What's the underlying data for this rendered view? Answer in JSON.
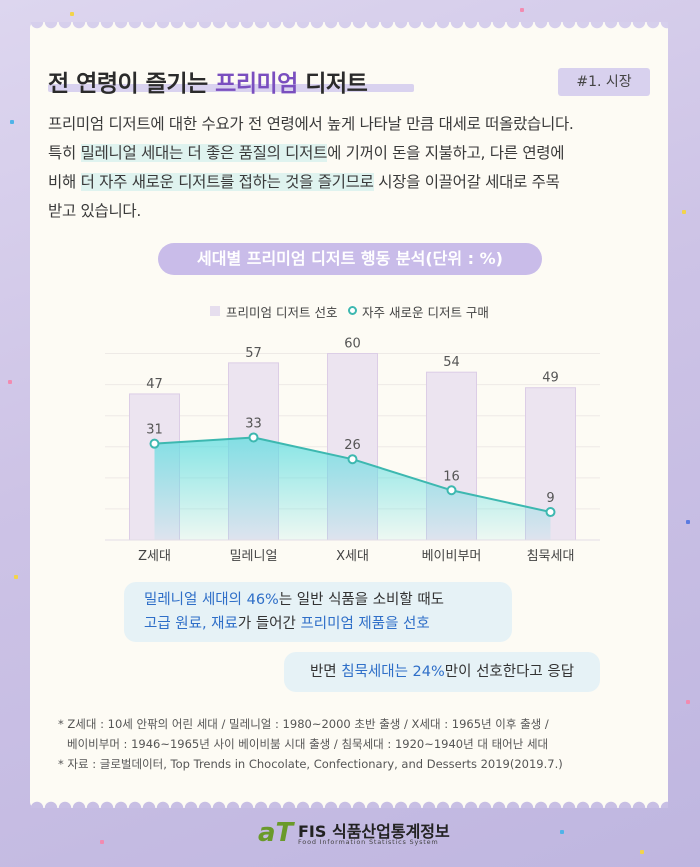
{
  "header": {
    "title_pre": "전 연령이 즐기는 ",
    "title_highlight": "프리미엄",
    "title_post": " 디저트",
    "tag": "#1. 시장"
  },
  "intro": {
    "p1": "프리미엄 디저트에 대한 수요가 전 연령에서 높게 나타날 만큼 대세로 떠올랐습니다.",
    "p2_pre": "특히 ",
    "p2_mark1": "밀레니얼 세대는 더 좋은 품질의 디저트",
    "p2_mid": "에 기꺼이 돈을 지불하고, 다른 연령에",
    "p3_pre": "비해 ",
    "p3_mark2": "더 자주 새로운 디저트를 접하는 것을 즐기므로",
    "p3_post": " 시장을 이끌어갈 세대로 주목",
    "p4": "받고 있습니다."
  },
  "chart_data": {
    "type": "bar",
    "title": "세대별 프리미엄 디저트 행동 분석(단위 : %)",
    "categories": [
      "Z세대",
      "밀레니얼",
      "X세대",
      "베이비부머",
      "침묵세대"
    ],
    "series": [
      {
        "name": "프리미엄 디저트 선호",
        "type": "bar",
        "values": [
          47,
          57,
          60,
          54,
          49
        ]
      },
      {
        "name": "자주 새로운 디저트 구매",
        "type": "line",
        "values": [
          31,
          33,
          26,
          16,
          9
        ]
      }
    ],
    "ylim": [
      0,
      65
    ],
    "grid": true,
    "legend": "top",
    "colors": {
      "bar": "#ece4f0",
      "bar_stroke": "#dccde6",
      "line": "#3db8b0",
      "area": "#5fdde0"
    }
  },
  "callouts": {
    "c1_l1_a": "밀레니얼 세대의 46%",
    "c1_l1_b": "는 일반 식품을 소비할 때도",
    "c1_l2_a": "고급 원료, 재료",
    "c1_l2_b": "가 들어간 ",
    "c1_l2_c": "프리미엄 제품을 선호",
    "c2_a": "반면 ",
    "c2_b": "침묵세대는 24%",
    "c2_c": "만이 선호한다고 응답"
  },
  "notes": {
    "n1": "Z세대 : 10세 안팎의 어린 세대 / 밀레니얼 : 1980~2000 초반 출생 / X세대 : 1965년 이후 출생  /",
    "n2": "베이비부머 : 1946~1965년 사이 베이비붐 시대 출생 / 침묵세대 : 1920~1940년 대 태어난 세대",
    "n3": "자료 : 글로벌데이터, Top Trends in Chocolate, Confectionary, and Desserts 2019(2019.7.)"
  },
  "footer": {
    "logo_at": "aT",
    "name": "FIS 식품산업통계정보",
    "sub": "Food Information Statistics System"
  }
}
